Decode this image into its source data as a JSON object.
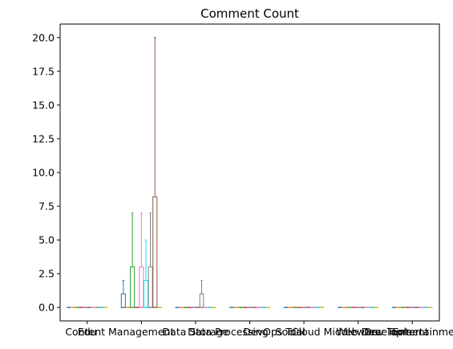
{
  "chart_data": {
    "type": "box",
    "title": "Comment Count",
    "xlabel": "",
    "ylabel": "",
    "ylim": [
      -1.0,
      21.0
    ],
    "yticks": [
      0.0,
      2.5,
      5.0,
      7.5,
      10.0,
      12.5,
      15.0,
      17.5,
      20.0
    ],
    "ytick_labels": [
      "0.0",
      "2.5",
      "5.0",
      "7.5",
      "10.0",
      "12.5",
      "15.0",
      "17.5",
      "20.0"
    ],
    "grid": false,
    "categories": [
      "Edu",
      "Content Management",
      "Data Storage",
      "Data Processing",
      "DevOps Tool",
      "Social",
      "Cloud Middleware",
      "Web Development",
      "Dev Tools",
      "Entertainment"
    ],
    "category_positions": [
      1,
      2,
      3,
      4,
      5,
      6,
      7
    ],
    "series_colors": [
      "#1f77b4",
      "#ff7f0e",
      "#2ca02c",
      "#d62728",
      "#9467bd",
      "#8c564b",
      "#e377c2",
      "#7f7f7f",
      "#bcbd22",
      "#17becf"
    ],
    "groups": [
      {
        "position": 1,
        "boxes": [
          {
            "color": "#1f77b4",
            "min": 0,
            "q1": 0,
            "median": 0,
            "q3": 0,
            "max": 0
          },
          {
            "color": "#ff7f0e",
            "min": 0,
            "q1": 0,
            "median": 0,
            "q3": 0,
            "max": 0
          },
          {
            "color": "#2ca02c",
            "min": 0,
            "q1": 0,
            "median": 0,
            "q3": 0,
            "max": 0
          },
          {
            "color": "#d62728",
            "min": 0,
            "q1": 0,
            "median": 0,
            "q3": 0,
            "max": 0
          },
          {
            "color": "#9467bd",
            "min": 0,
            "q1": 0,
            "median": 0,
            "q3": 0,
            "max": 0
          },
          {
            "color": "#8c564b",
            "min": 0,
            "q1": 0,
            "median": 0,
            "q3": 0,
            "max": 0
          },
          {
            "color": "#e377c2",
            "min": 0,
            "q1": 0,
            "median": 0,
            "q3": 0,
            "max": 0
          },
          {
            "color": "#7f7f7f",
            "min": 0,
            "q1": 0,
            "median": 0,
            "q3": 0,
            "max": 0
          },
          {
            "color": "#17becf",
            "min": 0,
            "q1": 0,
            "median": 0,
            "q3": 0,
            "max": 0
          },
          {
            "color": "#bcbd22",
            "min": 0,
            "q1": 0,
            "median": 0,
            "q3": 0,
            "max": 0
          }
        ]
      },
      {
        "position": 2,
        "boxes": [
          {
            "color": "#1f77b4",
            "min": 0,
            "q1": 0,
            "median": 0,
            "q3": 1,
            "max": 2
          },
          {
            "color": "#ff7f0e",
            "min": 0,
            "q1": 0,
            "median": 0,
            "q3": 0,
            "max": 0
          },
          {
            "color": "#2ca02c",
            "min": 0,
            "q1": 0,
            "median": 0,
            "q3": 3,
            "max": 7
          },
          {
            "color": "#d62728",
            "min": 0,
            "q1": 0,
            "median": 0,
            "q3": 0,
            "max": 0
          },
          {
            "color": "#e377c2",
            "min": 0,
            "q1": 0,
            "median": 0,
            "q3": 3,
            "max": 7
          },
          {
            "color": "#00e5ff",
            "min": 0,
            "q1": 0,
            "median": 0,
            "q3": 2,
            "max": 5
          },
          {
            "color": "#7f7f7f",
            "min": 0,
            "q1": 0,
            "median": 0,
            "q3": 3,
            "max": 7
          },
          {
            "color": "#8c564b",
            "min": 0,
            "q1": 0,
            "median": 0,
            "q3": 8.2,
            "max": 20
          },
          {
            "color": "#bcbd22",
            "min": 0,
            "q1": 0,
            "median": 0,
            "q3": 0,
            "max": 0
          }
        ]
      },
      {
        "position": 3,
        "boxes": [
          {
            "color": "#1f77b4",
            "min": 0,
            "q1": 0,
            "median": 0,
            "q3": 0,
            "max": 0
          },
          {
            "color": "#ff7f0e",
            "min": 0,
            "q1": 0,
            "median": 0,
            "q3": 0,
            "max": 0
          },
          {
            "color": "#2ca02c",
            "min": 0,
            "q1": 0,
            "median": 0,
            "q3": 0,
            "max": 0
          },
          {
            "color": "#d62728",
            "min": 0,
            "q1": 0,
            "median": 0,
            "q3": 0,
            "max": 0
          },
          {
            "color": "#9467bd",
            "min": 0,
            "q1": 0,
            "median": 0,
            "q3": 0,
            "max": 0
          },
          {
            "color": "#8c564b",
            "min": 0,
            "q1": 0,
            "median": 0,
            "q3": 0,
            "max": 0
          },
          {
            "color": "#7f7f7f",
            "min": 0,
            "q1": 0,
            "median": 0,
            "q3": 1,
            "max": 2
          },
          {
            "color": "#e377c2",
            "min": 0,
            "q1": 0,
            "median": 0,
            "q3": 0,
            "max": 0
          },
          {
            "color": "#17becf",
            "min": 0,
            "q1": 0,
            "median": 0,
            "q3": 0,
            "max": 0
          },
          {
            "color": "#bcbd22",
            "min": 0,
            "q1": 0,
            "median": 0,
            "q3": 0,
            "max": 0
          }
        ]
      },
      {
        "position": 4,
        "boxes": [
          {
            "color": "#1f77b4",
            "min": 0,
            "q1": 0,
            "median": 0,
            "q3": 0,
            "max": 0
          },
          {
            "color": "#ff7f0e",
            "min": 0,
            "q1": 0,
            "median": 0,
            "q3": 0,
            "max": 0
          },
          {
            "color": "#2ca02c",
            "min": 0,
            "q1": 0,
            "median": 0,
            "q3": 0,
            "max": 0
          },
          {
            "color": "#d62728",
            "min": 0,
            "q1": 0,
            "median": 0,
            "q3": 0,
            "max": 0
          },
          {
            "color": "#9467bd",
            "min": 0,
            "q1": 0,
            "median": 0,
            "q3": 0,
            "max": 0
          },
          {
            "color": "#8c564b",
            "min": 0,
            "q1": 0,
            "median": 0,
            "q3": 0,
            "max": 0
          },
          {
            "color": "#e377c2",
            "min": 0,
            "q1": 0,
            "median": 0,
            "q3": 0,
            "max": 0
          },
          {
            "color": "#17becf",
            "min": 0,
            "q1": 0,
            "median": 0,
            "q3": 0,
            "max": 0
          },
          {
            "color": "#bcbd22",
            "min": 0,
            "q1": 0,
            "median": 0,
            "q3": 0,
            "max": 0
          }
        ]
      },
      {
        "position": 5,
        "boxes": [
          {
            "color": "#1f77b4",
            "min": 0,
            "q1": 0,
            "median": 0,
            "q3": 0,
            "max": 0
          },
          {
            "color": "#ff7f0e",
            "min": 0,
            "q1": 0,
            "median": 0,
            "q3": 0,
            "max": 0
          },
          {
            "color": "#2ca02c",
            "min": 0,
            "q1": 0,
            "median": 0,
            "q3": 0,
            "max": 0
          },
          {
            "color": "#d62728",
            "min": 0,
            "q1": 0,
            "median": 0,
            "q3": 0,
            "max": 0
          },
          {
            "color": "#9467bd",
            "min": 0,
            "q1": 0,
            "median": 0,
            "q3": 0,
            "max": 0
          },
          {
            "color": "#8c564b",
            "min": 0,
            "q1": 0,
            "median": 0,
            "q3": 0,
            "max": 0
          },
          {
            "color": "#e377c2",
            "min": 0,
            "q1": 0,
            "median": 0,
            "q3": 0,
            "max": 0
          },
          {
            "color": "#17becf",
            "min": 0,
            "q1": 0,
            "median": 0,
            "q3": 0,
            "max": 0
          },
          {
            "color": "#bcbd22",
            "min": 0,
            "q1": 0,
            "median": 0,
            "q3": 0,
            "max": 0
          }
        ]
      },
      {
        "position": 6,
        "boxes": [
          {
            "color": "#1f77b4",
            "min": 0,
            "q1": 0,
            "median": 0,
            "q3": 0,
            "max": 0
          },
          {
            "color": "#ff7f0e",
            "min": 0,
            "q1": 0,
            "median": 0,
            "q3": 0,
            "max": 0
          },
          {
            "color": "#2ca02c",
            "min": 0,
            "q1": 0,
            "median": 0,
            "q3": 0,
            "max": 0
          },
          {
            "color": "#d62728",
            "min": 0,
            "q1": 0,
            "median": 0,
            "q3": 0,
            "max": 0
          },
          {
            "color": "#9467bd",
            "min": 0,
            "q1": 0,
            "median": 0,
            "q3": 0,
            "max": 0
          },
          {
            "color": "#8c564b",
            "min": 0,
            "q1": 0,
            "median": 0,
            "q3": 0,
            "max": 0
          },
          {
            "color": "#e377c2",
            "min": 0,
            "q1": 0,
            "median": 0,
            "q3": 0,
            "max": 0
          },
          {
            "color": "#17becf",
            "min": 0,
            "q1": 0,
            "median": 0,
            "q3": 0,
            "max": 0
          },
          {
            "color": "#bcbd22",
            "min": 0,
            "q1": 0,
            "median": 0,
            "q3": 0,
            "max": 0
          }
        ]
      },
      {
        "position": 7,
        "boxes": [
          {
            "color": "#1f77b4",
            "min": 0,
            "q1": 0,
            "median": 0,
            "q3": 0,
            "max": 0
          },
          {
            "color": "#ff7f0e",
            "min": 0,
            "q1": 0,
            "median": 0,
            "q3": 0,
            "max": 0
          },
          {
            "color": "#2ca02c",
            "min": 0,
            "q1": 0,
            "median": 0,
            "q3": 0,
            "max": 0
          },
          {
            "color": "#d62728",
            "min": 0,
            "q1": 0,
            "median": 0,
            "q3": 0,
            "max": 0
          },
          {
            "color": "#9467bd",
            "min": 0,
            "q1": 0,
            "median": 0,
            "q3": 0,
            "max": 0
          },
          {
            "color": "#8c564b",
            "min": 0,
            "q1": 0,
            "median": 0,
            "q3": 0,
            "max": 0
          },
          {
            "color": "#e377c2",
            "min": 0,
            "q1": 0,
            "median": 0,
            "q3": 0,
            "max": 0
          },
          {
            "color": "#17becf",
            "min": 0,
            "q1": 0,
            "median": 0,
            "q3": 0,
            "max": 0
          },
          {
            "color": "#bcbd22",
            "min": 0,
            "q1": 0,
            "median": 0,
            "q3": 0,
            "max": 0
          }
        ]
      }
    ],
    "x_tick_labels": [
      {
        "text": "Edu",
        "position": 1.0
      },
      {
        "text": "Content Management",
        "position": 1.6
      },
      {
        "text": "Data Storage",
        "position": 3.0
      },
      {
        "text": "Data Processing",
        "position": 3.6
      },
      {
        "text": "DevOps Tool",
        "position": 4.45
      },
      {
        "text": "Social",
        "position": 4.75
      },
      {
        "text": "Cloud Middleware",
        "position": 5.6
      },
      {
        "text": "Web Development",
        "position": 6.45
      },
      {
        "text": "Dev Tools",
        "position": 6.55
      },
      {
        "text": "Entertainment",
        "position": 7.3
      }
    ]
  }
}
